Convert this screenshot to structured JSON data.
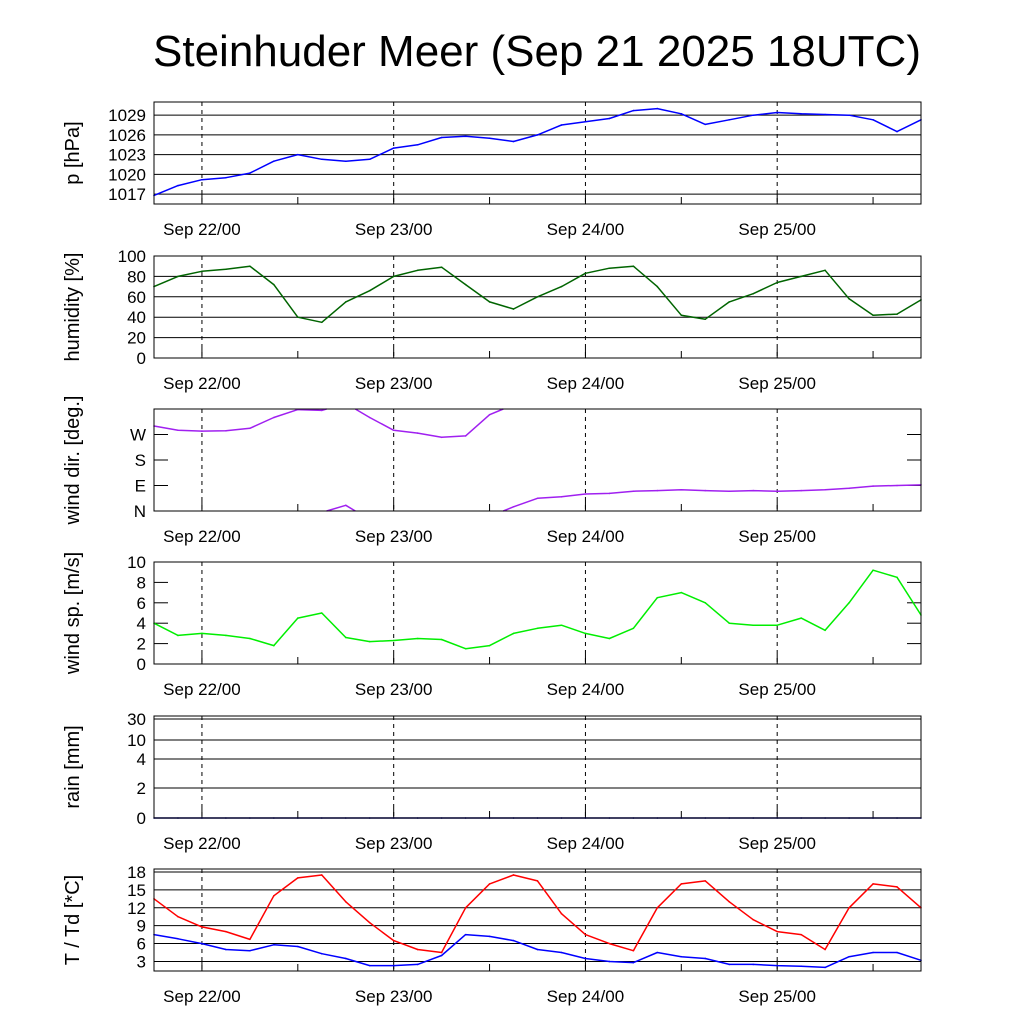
{
  "title": "Steinhuder Meer (Sep 21 2025 18UTC)",
  "chart_data": {
    "type": "line",
    "title": "Steinhuder Meer (Sep 21 2025 18UTC)",
    "x_unit": "hours since Sep 21 2025 18UTC",
    "x": [
      0,
      3,
      6,
      9,
      12,
      15,
      18,
      21,
      24,
      27,
      30,
      33,
      36,
      39,
      42,
      45,
      48,
      51,
      54,
      57,
      60,
      63,
      66,
      69,
      72,
      75,
      78,
      81,
      84,
      87,
      90,
      93,
      96
    ],
    "xlim": [
      0,
      96
    ],
    "x_tick_labels": [
      "Sep 22/00",
      "Sep 23/00",
      "Sep 24/00",
      "Sep 25/00"
    ],
    "x_tick_hours": [
      6,
      30,
      54,
      78
    ],
    "grid": true,
    "panels": [
      {
        "id": "pressure",
        "ylabel": "p [hPa]",
        "ylim": [
          1015.5,
          1031
        ],
        "yticks": [
          1017,
          1020,
          1023,
          1026,
          1029
        ],
        "ytick_labels": [
          "1017",
          "1020",
          "1023",
          "1026",
          "1029"
        ],
        "series": [
          {
            "name": "pressure",
            "color": "#0000ff",
            "values": [
              1016.8,
              1018.3,
              1019.2,
              1019.5,
              1020.2,
              1022.0,
              1023.0,
              1022.3,
              1022.0,
              1022.3,
              1024.0,
              1024.5,
              1025.6,
              1025.8,
              1025.5,
              1025.0,
              1026.0,
              1027.5,
              1028.0,
              1028.5,
              1029.7,
              1030.0,
              1029.2,
              1027.6,
              1028.3,
              1029.0,
              1029.4,
              1029.2,
              1029.1,
              1029.0,
              1028.3,
              1026.5,
              1028.3
            ]
          }
        ]
      },
      {
        "id": "humidity",
        "ylabel": "humidity [%]",
        "ylim": [
          0,
          100
        ],
        "yticks": [
          0,
          20,
          40,
          60,
          80,
          100
        ],
        "ytick_labels": [
          "0",
          "20",
          "40",
          "60",
          "80",
          "100"
        ],
        "series": [
          {
            "name": "humidity",
            "color": "#006400",
            "values": [
              70,
              80,
              85,
              87,
              90,
              72,
              40,
              35,
              55,
              66,
              80,
              86,
              89,
              72,
              55,
              48,
              60,
              70,
              83,
              88,
              90,
              70,
              42,
              38,
              55,
              63,
              74,
              80,
              86,
              58,
              42,
              43,
              57
            ]
          }
        ]
      },
      {
        "id": "wind-direction",
        "ylabel": "wind dir. [deg.]",
        "ylim": [
          0,
          360
        ],
        "yticks": [
          0,
          90,
          180,
          270
        ],
        "ytick_labels": [
          "N",
          "E",
          "S",
          "W"
        ],
        "series": [
          {
            "name": "wind direction",
            "color": "#a020f0",
            "values": [
              300,
              285,
              282,
              283,
              292,
              330,
              358,
              355,
              20,
              330,
              285,
              275,
              260,
              265,
              340,
              15,
              45,
              50,
              60,
              62,
              70,
              72,
              75,
              72,
              70,
              72,
              70,
              72,
              75,
              80,
              88,
              90,
              92
            ]
          }
        ]
      },
      {
        "id": "wind-speed",
        "ylabel": "wind sp. [m/s]",
        "ylim": [
          0,
          10
        ],
        "yticks": [
          0,
          2,
          4,
          6,
          8,
          10
        ],
        "ytick_labels": [
          "0",
          "2",
          "4",
          "6",
          "8",
          "10"
        ],
        "series": [
          {
            "name": "wind speed",
            "color": "#00ee00",
            "values": [
              4.0,
              2.8,
              3.0,
              2.8,
              2.5,
              1.8,
              4.5,
              5.0,
              2.6,
              2.2,
              2.3,
              2.5,
              2.4,
              1.5,
              1.8,
              3.0,
              3.5,
              3.8,
              3.0,
              2.5,
              3.5,
              6.5,
              7.0,
              6.0,
              4.0,
              3.8,
              3.8,
              4.5,
              3.3,
              6.0,
              9.2,
              8.5,
              4.8
            ]
          }
        ]
      },
      {
        "id": "rain",
        "ylabel": "rain [mm]",
        "ylim": [
          0,
          35
        ],
        "yticks": [
          0,
          2,
          4,
          10,
          30
        ],
        "ytick_labels": [
          "0",
          "2",
          "4",
          "10",
          "30"
        ],
        "series": [
          {
            "name": "rain",
            "color": "#00008b",
            "values": [
              0,
              0,
              0,
              0,
              0,
              0,
              0,
              0,
              0,
              0,
              0,
              0,
              0,
              0,
              0,
              0,
              0,
              0,
              0,
              0,
              0,
              0,
              0,
              0,
              0,
              0,
              0,
              0,
              0,
              0,
              0,
              0,
              0
            ]
          }
        ]
      },
      {
        "id": "temperature",
        "ylabel": "T / Td [*C]",
        "ylim": [
          1.4,
          18.5
        ],
        "yticks": [
          3,
          6,
          9,
          12,
          15,
          18
        ],
        "ytick_labels": [
          "3",
          "6",
          "9",
          "12",
          "15",
          "18"
        ],
        "series": [
          {
            "name": "T",
            "color": "#ff0000",
            "values": [
              13.5,
              10.5,
              8.8,
              8.0,
              6.7,
              14.0,
              17.0,
              17.5,
              13.0,
              9.5,
              6.5,
              5.0,
              4.5,
              12.0,
              16.0,
              17.5,
              16.5,
              11.0,
              7.5,
              6.0,
              4.8,
              12.0,
              16.0,
              16.5,
              13.0,
              10.0,
              8.0,
              7.5,
              5.0,
              12.0,
              16.0,
              15.5,
              12.0
            ]
          },
          {
            "name": "Td",
            "color": "#0000ff",
            "values": [
              7.5,
              6.8,
              6.0,
              5.0,
              4.8,
              5.8,
              5.5,
              4.3,
              3.5,
              2.3,
              2.3,
              2.5,
              4.0,
              7.5,
              7.2,
              6.5,
              5.0,
              4.5,
              3.5,
              3.0,
              2.8,
              4.5,
              3.8,
              3.5,
              2.5,
              2.5,
              2.3,
              2.2,
              2.0,
              3.8,
              4.5,
              4.5,
              3.2
            ]
          }
        ]
      }
    ]
  }
}
